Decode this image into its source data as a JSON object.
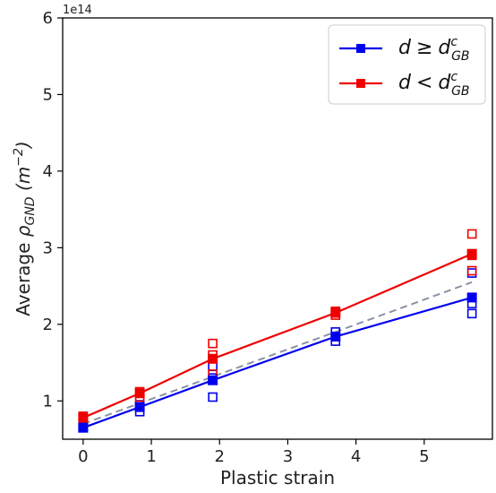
{
  "chart_data": {
    "type": "line",
    "xlabel": "Plastic strain",
    "ylabel_parts": {
      "prefix": "Average ",
      "symbol": "ρ",
      "subscript": "GND",
      "unit_open": " (m",
      "unit_sup": "−2",
      "unit_close": ")"
    },
    "y_offset_label": "1e14",
    "xlim": [
      -0.3,
      6.0
    ],
    "ylim": [
      0.5,
      6.0
    ],
    "x_ticks": [
      0,
      1,
      2,
      3,
      4,
      5
    ],
    "y_ticks": [
      1,
      2,
      3,
      4,
      5,
      6
    ],
    "grid": false,
    "legend": {
      "position": "top-right",
      "entries": [
        {
          "series": 0,
          "sym": "d",
          "op": "≥",
          "rhs": "d",
          "sup": "c",
          "sub": "GB"
        },
        {
          "series": 1,
          "sym": "d",
          "op": "<",
          "rhs": "d",
          "sup": "c",
          "sub": "GB"
        }
      ]
    },
    "series": [
      {
        "color": "#0000ee",
        "mean": {
          "x": [
            0,
            0.83,
            1.9,
            3.7,
            5.7
          ],
          "y": [
            0.65,
            0.92,
            1.27,
            1.84,
            2.35
          ]
        },
        "samples": [
          {
            "x": 0,
            "y": 0.65
          },
          {
            "x": 0,
            "y": 0.66
          },
          {
            "x": 0.83,
            "y": 0.86
          },
          {
            "x": 0.83,
            "y": 0.95
          },
          {
            "x": 1.9,
            "y": 1.05
          },
          {
            "x": 1.9,
            "y": 1.3
          },
          {
            "x": 1.9,
            "y": 1.45
          },
          {
            "x": 3.7,
            "y": 1.78
          },
          {
            "x": 3.7,
            "y": 1.9
          },
          {
            "x": 5.7,
            "y": 2.14
          },
          {
            "x": 5.7,
            "y": 2.27
          },
          {
            "x": 5.7,
            "y": 2.67
          }
        ]
      },
      {
        "color": "#ee0000",
        "mean": {
          "x": [
            0,
            0.83,
            1.9,
            3.7,
            5.7
          ],
          "y": [
            0.78,
            1.1,
            1.55,
            2.15,
            2.92
          ]
        },
        "samples": [
          {
            "x": 0,
            "y": 0.78
          },
          {
            "x": 0,
            "y": 0.8
          },
          {
            "x": 0.83,
            "y": 1.05
          },
          {
            "x": 0.83,
            "y": 1.12
          },
          {
            "x": 1.9,
            "y": 1.35
          },
          {
            "x": 1.9,
            "y": 1.6
          },
          {
            "x": 1.9,
            "y": 1.75
          },
          {
            "x": 3.7,
            "y": 2.12
          },
          {
            "x": 3.7,
            "y": 2.17
          },
          {
            "x": 5.7,
            "y": 2.7
          },
          {
            "x": 5.7,
            "y": 2.9
          },
          {
            "x": 5.7,
            "y": 3.18
          }
        ]
      }
    ],
    "fit_line": {
      "color": "#8a93a3",
      "style": "dashed",
      "x": [
        0,
        5.7
      ],
      "y": [
        0.7,
        2.55
      ]
    }
  }
}
